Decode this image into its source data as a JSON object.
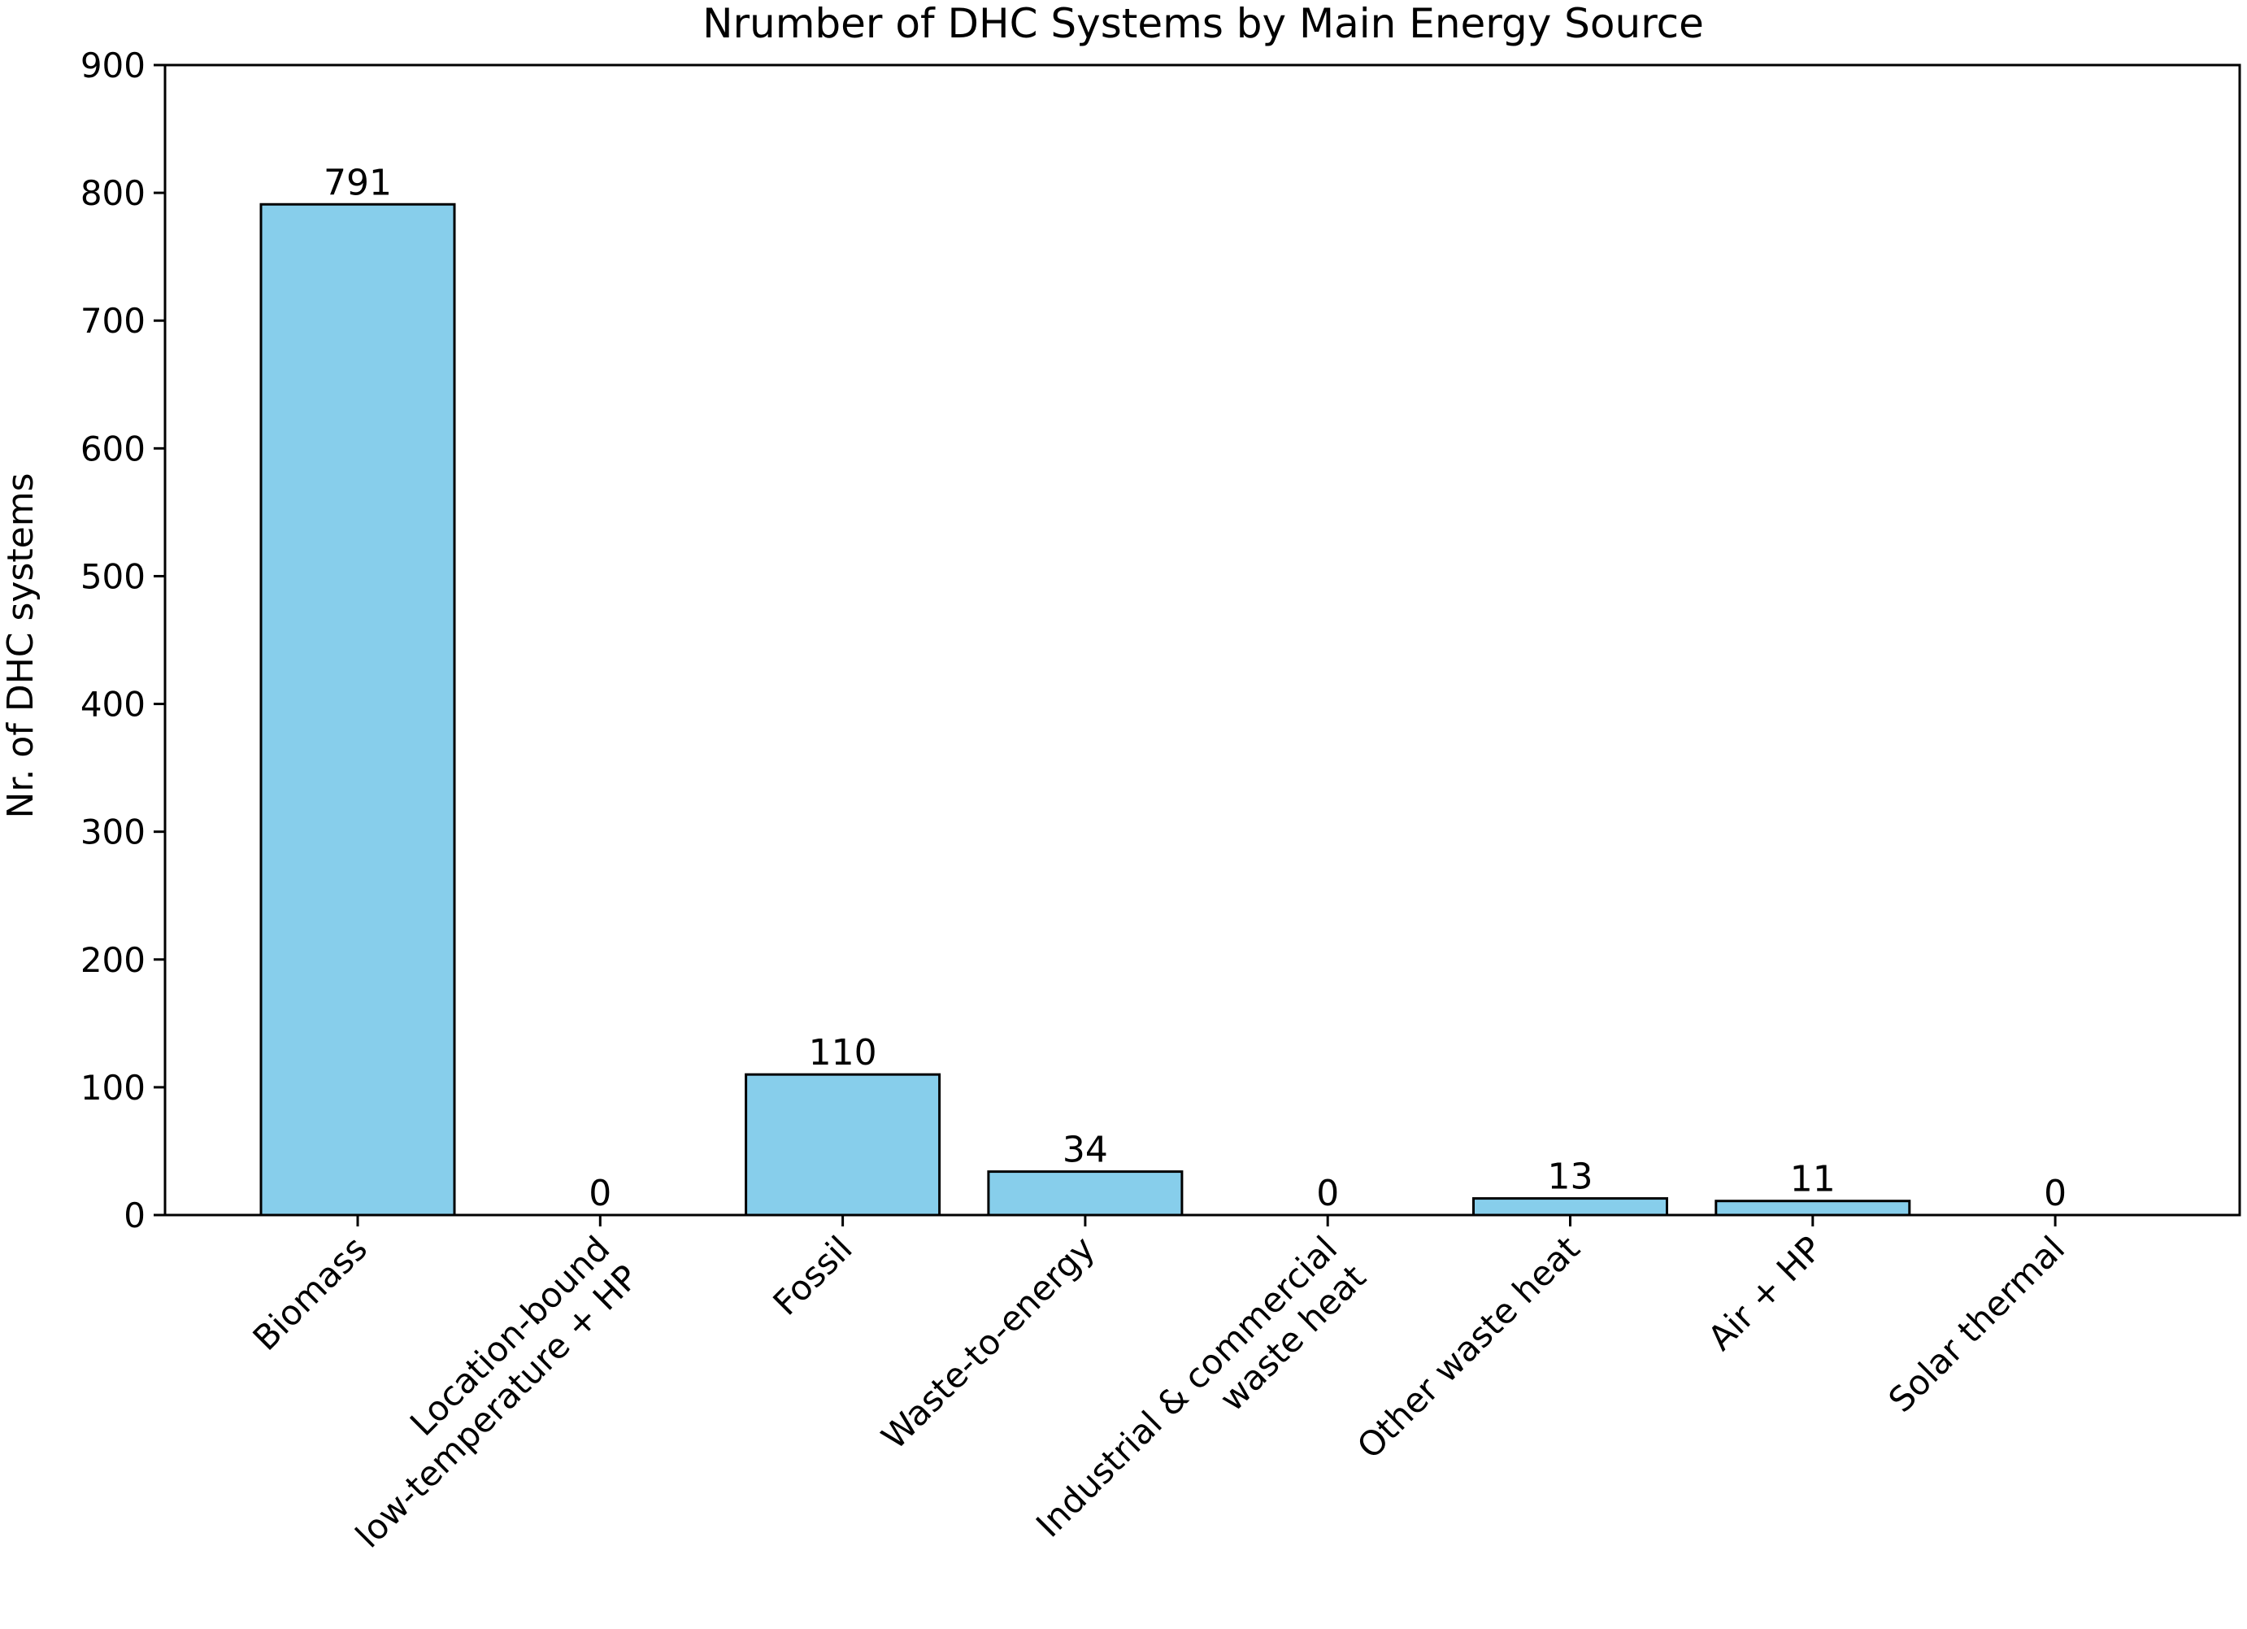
{
  "chart_data": {
    "type": "bar",
    "title": "Nrumber of DHC Systems by Main Energy Source",
    "xlabel": "",
    "ylabel": "Nr. of DHC systems",
    "ylim": [
      0,
      900
    ],
    "yticks": [
      0,
      100,
      200,
      300,
      400,
      500,
      600,
      700,
      800,
      900
    ],
    "ytick_labels": [
      "0",
      "100",
      "200",
      "300",
      "400",
      "500",
      "600",
      "700",
      "800",
      "900"
    ],
    "categories": [
      "Biomass",
      "Location-bound\nlow-temperature + HP",
      "Fossil",
      "Waste-to-energy",
      "Industrial &  commercial\nwaste heat",
      "Other waste heat",
      "Air + HP",
      "Solar thermal"
    ],
    "values": [
      791,
      0,
      110,
      34,
      0,
      13,
      11,
      0
    ],
    "data_labels": [
      "791",
      "0",
      "110",
      "34",
      "0",
      "13",
      "11",
      "0"
    ],
    "bar_color": "#87ceeb",
    "edge_color": "#000000",
    "grid": false,
    "legend": "none"
  }
}
